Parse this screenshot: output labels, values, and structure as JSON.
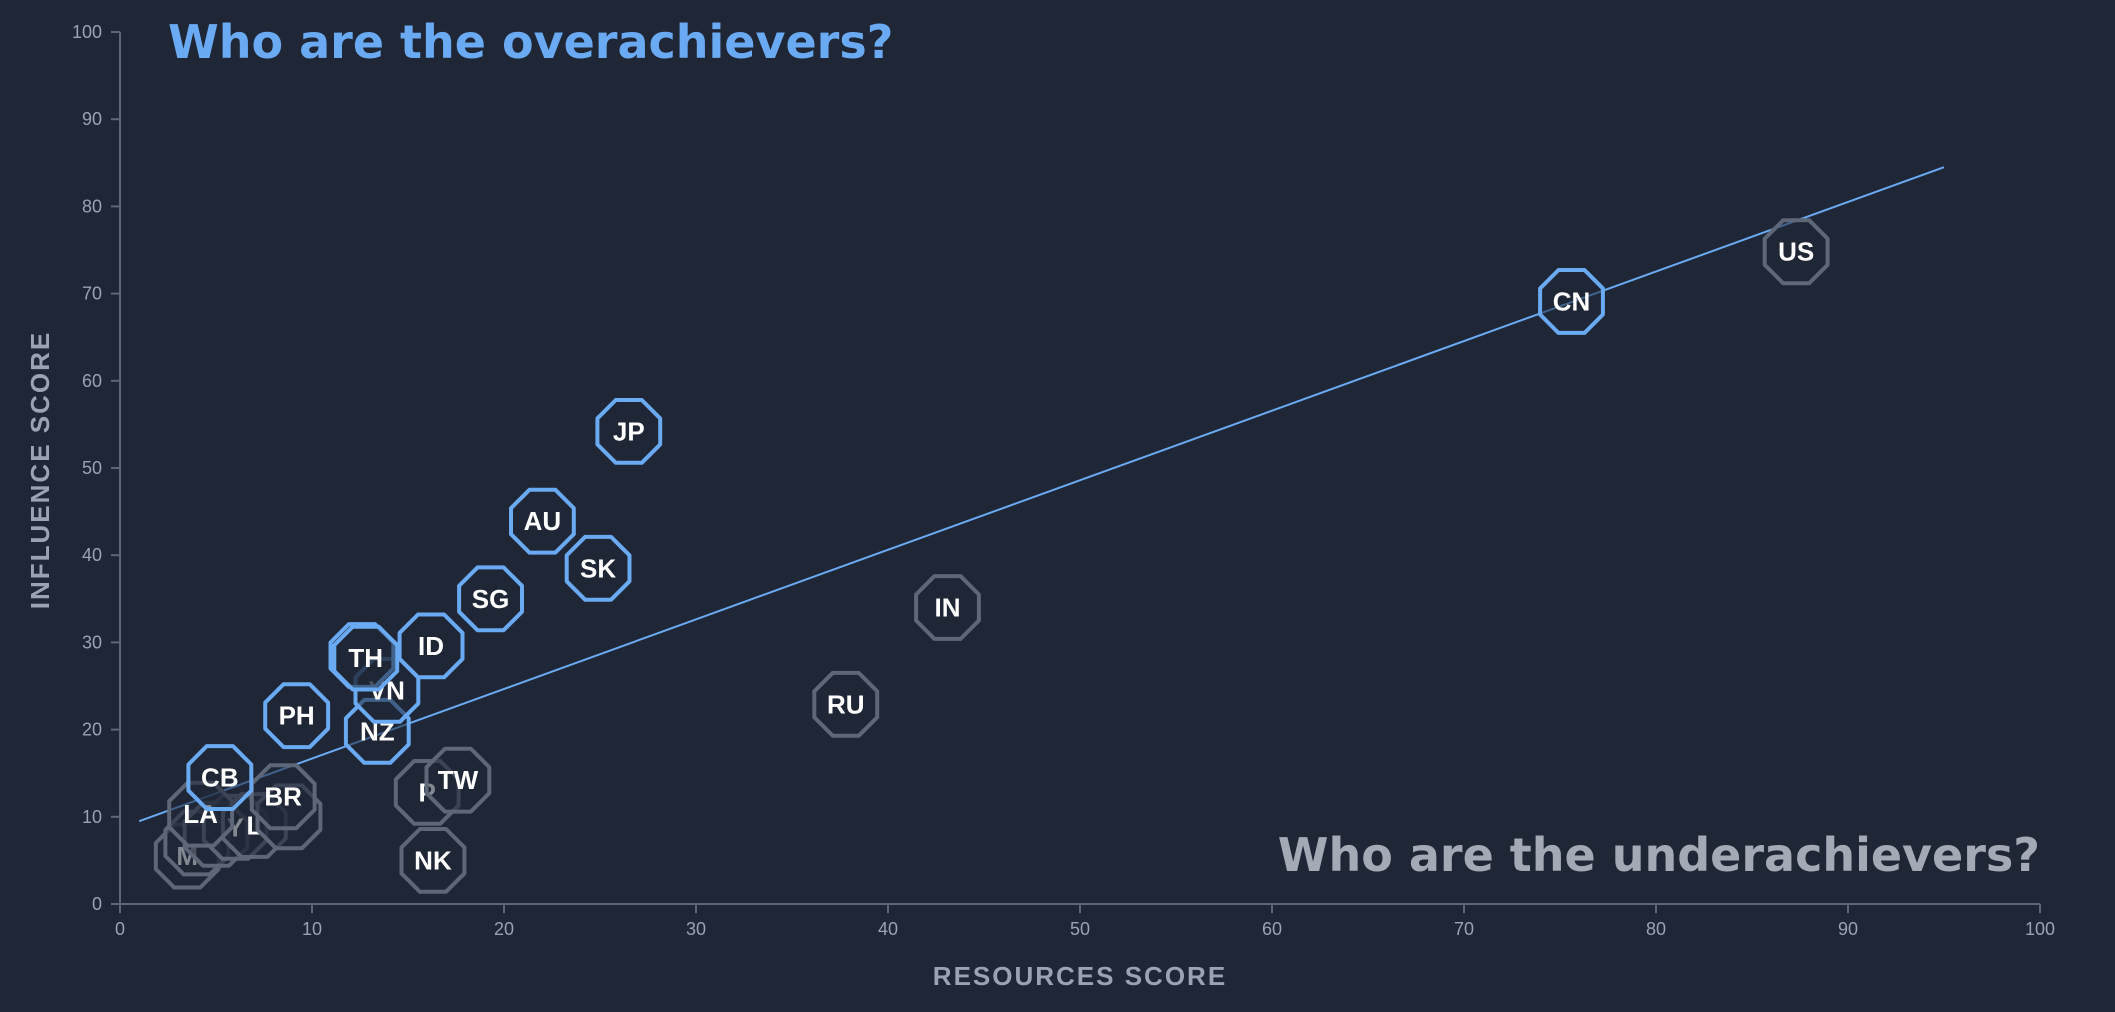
{
  "chart_data": {
    "type": "scatter",
    "xlabel": "RESOURCES SCORE",
    "ylabel": "INFLUENCE SCORE",
    "xlim": [
      0,
      100
    ],
    "ylim": [
      0,
      100
    ],
    "xticks": [
      "0",
      "10",
      "20",
      "30",
      "40",
      "50",
      "60",
      "70",
      "80",
      "90",
      "100"
    ],
    "yticks": [
      "0",
      "10",
      "20",
      "30",
      "40",
      "50",
      "60",
      "70",
      "80",
      "90",
      "100"
    ],
    "grid": false,
    "annotations": {
      "overachievers": "Who are the overachievers?",
      "underachievers": "Who are the underachievers?"
    },
    "trendline": {
      "x": [
        1,
        95
      ],
      "y": [
        9.5,
        84.5
      ]
    },
    "colors": {
      "background": "#1f2636",
      "axis": "#5d6778",
      "over": "#6aaaf2",
      "under": "#5d6778",
      "trend": "#6aaaf2",
      "overText": "#6aaaf2",
      "underText": "#a3aab6"
    },
    "points": [
      {
        "label": "M",
        "x": 3.5,
        "y": 5.5,
        "group": "under"
      },
      {
        "label": "",
        "x": 4.0,
        "y": 7.0,
        "group": "under"
      },
      {
        "label": "",
        "x": 5.0,
        "y": 8.0,
        "group": "under"
      },
      {
        "label": "Y",
        "x": 6.0,
        "y": 8.8,
        "group": "under"
      },
      {
        "label": "L",
        "x": 7.0,
        "y": 9.0,
        "group": "under"
      },
      {
        "label": "",
        "x": 8.8,
        "y": 10.0,
        "group": "under"
      },
      {
        "label": "BR",
        "x": 8.5,
        "y": 12.3,
        "group": "under"
      },
      {
        "label": "LA",
        "x": 4.2,
        "y": 10.3,
        "group": "under"
      },
      {
        "label": "P",
        "x": 16.0,
        "y": 12.8,
        "group": "under"
      },
      {
        "label": "TW",
        "x": 17.6,
        "y": 14.2,
        "group": "under"
      },
      {
        "label": "NK",
        "x": 16.3,
        "y": 5.0,
        "group": "under"
      },
      {
        "label": "RU",
        "x": 37.8,
        "y": 22.9,
        "group": "under"
      },
      {
        "label": "IN",
        "x": 43.1,
        "y": 34.0,
        "group": "under"
      },
      {
        "label": "US",
        "x": 87.3,
        "y": 74.8,
        "group": "under"
      },
      {
        "label": "CB",
        "x": 5.2,
        "y": 14.5,
        "group": "over"
      },
      {
        "label": "PH",
        "x": 9.2,
        "y": 21.6,
        "group": "over"
      },
      {
        "label": "NZ",
        "x": 13.4,
        "y": 19.8,
        "group": "over"
      },
      {
        "label": "VN",
        "x": 13.9,
        "y": 24.5,
        "group": "over"
      },
      {
        "label": "",
        "x": 12.6,
        "y": 28.5,
        "group": "over"
      },
      {
        "label": "TH",
        "x": 12.8,
        "y": 28.2,
        "group": "over"
      },
      {
        "label": "ID",
        "x": 16.2,
        "y": 29.6,
        "group": "over"
      },
      {
        "label": "SG",
        "x": 19.3,
        "y": 35.0,
        "group": "over"
      },
      {
        "label": "AU",
        "x": 22.0,
        "y": 43.9,
        "group": "over"
      },
      {
        "label": "SK",
        "x": 24.9,
        "y": 38.5,
        "group": "over"
      },
      {
        "label": "JP",
        "x": 26.5,
        "y": 54.2,
        "group": "over"
      },
      {
        "label": "CN",
        "x": 75.6,
        "y": 69.1,
        "group": "over"
      }
    ]
  }
}
